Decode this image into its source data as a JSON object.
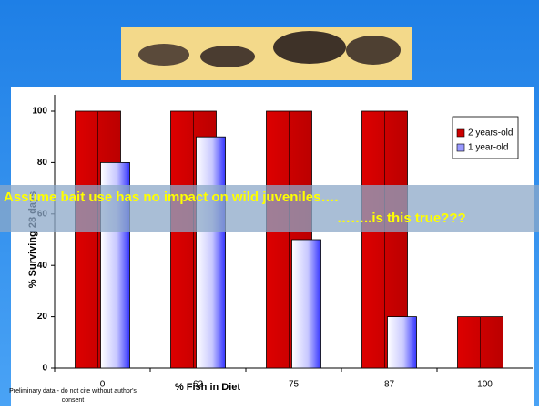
{
  "chart_data": {
    "type": "bar",
    "xlabel": "% Fish in Diet",
    "ylabel": "% Surviving 28 days",
    "categories": [
      "0",
      "62",
      "75",
      "87",
      "100"
    ],
    "series": [
      {
        "name": "2 years-old",
        "color": "#cc0000",
        "values": [
          100,
          100,
          100,
          100,
          20
        ]
      },
      {
        "name": "1 year-old",
        "color": "#9999ff",
        "values": [
          80,
          90,
          50,
          20,
          null
        ]
      }
    ],
    "ylim": [
      0,
      100
    ],
    "yticks": [
      0,
      20,
      40,
      60,
      80,
      100
    ],
    "legend": "upper right",
    "annotations": [
      "Assume bait use has no impact on wild juveniles….",
      "……..is this true???"
    ],
    "footnote": [
      "Preliminary data - do not cite without author's",
      "consent"
    ]
  }
}
